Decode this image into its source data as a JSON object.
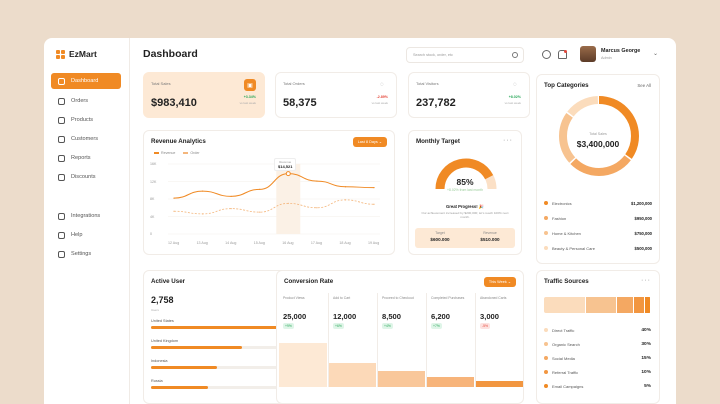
{
  "app": {
    "name": "EzMart"
  },
  "sidebar": {
    "items": [
      {
        "label": "Dashboard",
        "icon": "grid-icon",
        "active": true
      },
      {
        "label": "Orders",
        "icon": "cart-icon"
      },
      {
        "label": "Products",
        "icon": "box-icon"
      },
      {
        "label": "Customers",
        "icon": "users-icon"
      },
      {
        "label": "Reports",
        "icon": "chart-icon"
      },
      {
        "label": "Discounts",
        "icon": "percent-icon"
      },
      {
        "label": "Integrations",
        "icon": "link-icon"
      },
      {
        "label": "Help",
        "icon": "help-icon"
      },
      {
        "label": "Settings",
        "icon": "gear-icon"
      }
    ]
  },
  "header": {
    "title": "Dashboard",
    "search_placeholder": "Search stock, order, etc",
    "user_name": "Marcus George",
    "user_role": "Admin"
  },
  "kpis": [
    {
      "label": "Total Sales",
      "value": "$983,410",
      "change": "+3.34%",
      "note": "vs last week",
      "highlight": true,
      "icon": "wallet-icon"
    },
    {
      "label": "Total Orders",
      "value": "58,375",
      "change": "-2.89%",
      "note": "vs last week",
      "highlight": false,
      "icon": "cart-icon"
    },
    {
      "label": "Total Visitors",
      "value": "237,782",
      "change": "+8.02%",
      "note": "vs last week",
      "highlight": false,
      "icon": "users-icon"
    }
  ],
  "revenue": {
    "title": "Revenue Analytics",
    "button": "Last 8 Days",
    "legend": [
      "Revenue",
      "Order"
    ],
    "tooltip_label": "Revenue",
    "tooltip_value": "$14,521"
  },
  "monthly_target": {
    "title": "Monthly Target",
    "progress": 0.85,
    "percent_label": "85%",
    "sub_label": "+8.02% from last month",
    "status_title": "Great Progress! 🎉",
    "status_text": "Our achievement increased by $200,000; let's reach 100% next month.",
    "target_label": "Target",
    "target_value": "$600.000",
    "revenue_label": "Revenue",
    "revenue_value": "$510.000"
  },
  "top_categories": {
    "title": "Top Categories",
    "see_all": "See All",
    "total_label": "Total Sales",
    "total_value": "$3,400,000",
    "items": [
      {
        "name": "Electronics",
        "value": "$1,200,000",
        "color": "#f08a24"
      },
      {
        "name": "Fashion",
        "value": "$950,000",
        "color": "#f4a862"
      },
      {
        "name": "Home & Kitchen",
        "value": "$750,000",
        "color": "#f7c390"
      },
      {
        "name": "Beauty & Personal Care",
        "value": "$500,000",
        "color": "#fbdcbc"
      }
    ]
  },
  "active_user": {
    "title": "Active User",
    "value": "2,758",
    "badge": "+8.02%",
    "note": "from last month",
    "note2": "Users",
    "countries": [
      {
        "name": "United States",
        "percent": "36%",
        "fill": 0.36
      },
      {
        "name": "United Kingdom",
        "percent": "24%",
        "fill": 0.24
      },
      {
        "name": "Indonesia",
        "percent": "17.5%",
        "fill": 0.175
      },
      {
        "name": "Russia",
        "percent": "15%",
        "fill": 0.15
      }
    ]
  },
  "conversion": {
    "title": "Conversion Rate",
    "button": "This Week",
    "stages": [
      {
        "label": "Product Views",
        "value": "25,000",
        "badge": "+9%",
        "up": true,
        "level": 0.55
      },
      {
        "label": "Add to Cart",
        "value": "12,000",
        "badge": "+6%",
        "up": true,
        "level": 0.3
      },
      {
        "label": "Proceed to Checkout",
        "value": "8,500",
        "badge": "+4%",
        "up": true,
        "level": 0.2
      },
      {
        "label": "Completed Purchases",
        "value": "6,200",
        "badge": "+7%",
        "up": true,
        "level": 0.13
      },
      {
        "label": "Abandoned Carts",
        "value": "3,000",
        "badge": "-5%",
        "up": false,
        "level": 0.08
      }
    ]
  },
  "traffic": {
    "title": "Traffic Sources",
    "sources": [
      {
        "name": "Direct Traffic",
        "percent": "40%",
        "share": 40,
        "color": "#fbdcbc"
      },
      {
        "name": "Organic Search",
        "percent": "30%",
        "share": 30,
        "color": "#f7c390"
      },
      {
        "name": "Social Media",
        "percent": "15%",
        "share": 15,
        "color": "#f4a862"
      },
      {
        "name": "Referral Traffic",
        "percent": "10%",
        "share": 10,
        "color": "#f29640"
      },
      {
        "name": "Email Campaigns",
        "percent": "5%",
        "share": 5,
        "color": "#f08a24"
      }
    ]
  },
  "chart_data": {
    "type": "line",
    "x": [
      "12 Aug",
      "13 Aug",
      "14 Aug",
      "15 Aug",
      "16 Aug",
      "17 Aug",
      "18 Aug",
      "19 Aug"
    ],
    "yticks": [
      "16K",
      "12K",
      "8K",
      "4K",
      "0"
    ],
    "ylim": [
      0,
      16000
    ],
    "series": [
      {
        "name": "Revenue",
        "values": [
          8200,
          9800,
          8600,
          10200,
          13800,
          12100,
          10800,
          10600
        ],
        "color": "#f08a24"
      },
      {
        "name": "Order",
        "values": [
          5200,
          4600,
          5800,
          5000,
          7000,
          6000,
          7800,
          6800
        ],
        "color": "#f4b67c"
      }
    ]
  }
}
